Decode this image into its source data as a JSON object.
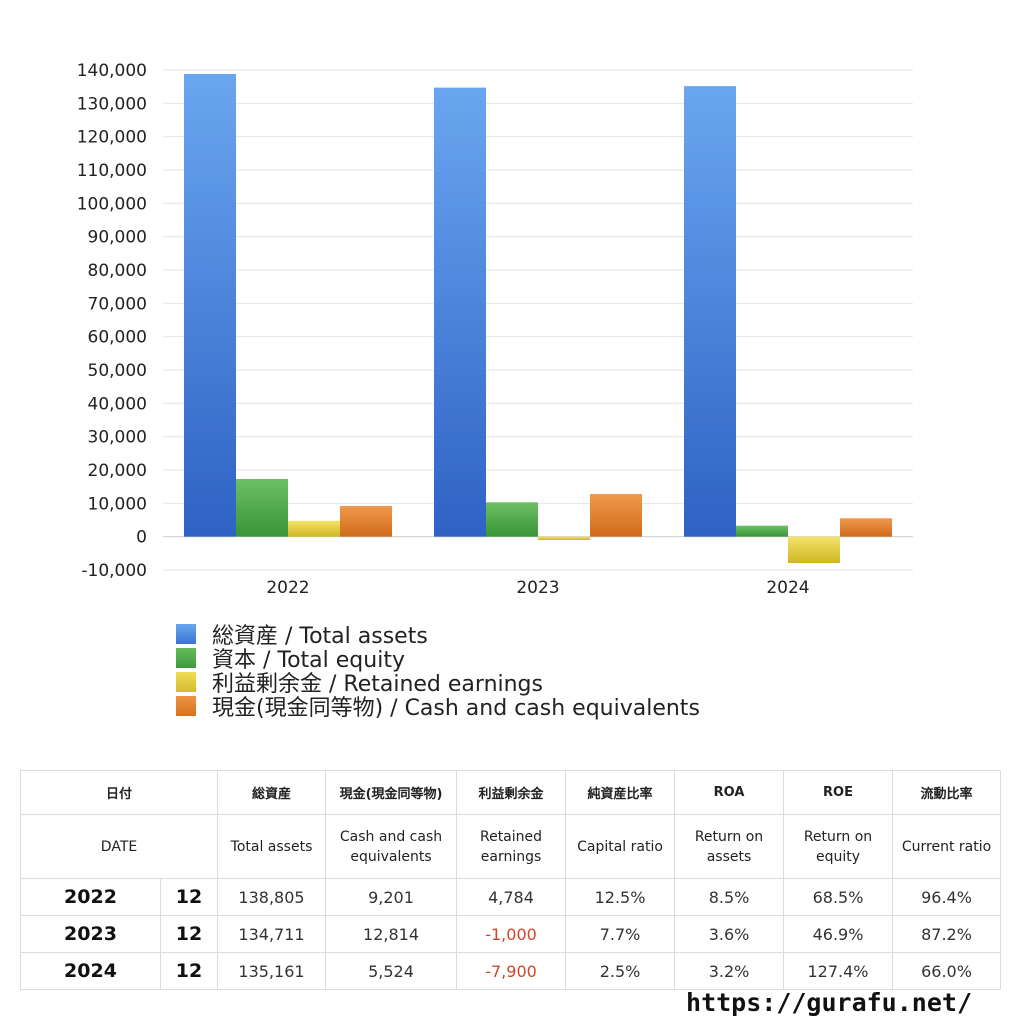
{
  "chart_data": {
    "type": "bar",
    "categories": [
      "2022",
      "2023",
      "2024"
    ],
    "series": [
      {
        "name": "総資産 / Total assets",
        "values": [
          138805,
          134711,
          135161
        ],
        "color": "#4a88e0"
      },
      {
        "name": "資本 / Total equity",
        "values": [
          17300,
          10300,
          3300
        ],
        "color": "#4ea74a"
      },
      {
        "name": "利益剰余金 / Retained earnings",
        "values": [
          4784,
          -1000,
          -7900
        ],
        "color": "#e6cf3e"
      },
      {
        "name": "現金(現金同等物) / Cash and cash equivalents",
        "values": [
          9201,
          12814,
          5524
        ],
        "color": "#e2812e"
      }
    ],
    "ylim": [
      -10000,
      140000
    ],
    "yticks": [
      "140,000",
      "130,000",
      "120,000",
      "110,000",
      "100,000",
      "90,000",
      "80,000",
      "70,000",
      "60,000",
      "50,000",
      "40,000",
      "30,000",
      "20,000",
      "10,000",
      "0",
      "-10,000"
    ],
    "grid": true,
    "legend_position": "bottom"
  },
  "table": {
    "header1": [
      "日付",
      "",
      "総資産",
      "現金(現金同等物)",
      "利益剰余金",
      "純資産比率",
      "ROA",
      "ROE",
      "流動比率"
    ],
    "header2": [
      "DATE",
      "",
      "Total assets",
      "Cash and cash equivalents",
      "Retained earnings",
      "Capital ratio",
      "Return on assets",
      "Return on equity",
      "Current ratio"
    ],
    "rows": [
      {
        "year": "2022",
        "month": "12",
        "total_assets": "138,805",
        "cash": "9,201",
        "retained": "4,784",
        "capital_ratio": "12.5%",
        "roa": "8.5%",
        "roe": "68.5%",
        "current_ratio": "96.4%"
      },
      {
        "year": "2023",
        "month": "12",
        "total_assets": "134,711",
        "cash": "12,814",
        "retained": "-1,000",
        "capital_ratio": "7.7%",
        "roa": "3.6%",
        "roe": "46.9%",
        "current_ratio": "87.2%"
      },
      {
        "year": "2024",
        "month": "12",
        "total_assets": "135,161",
        "cash": "5,524",
        "retained": "-7,900",
        "capital_ratio": "2.5%",
        "roa": "3.2%",
        "roe": "127.4%",
        "current_ratio": "66.0%"
      }
    ]
  },
  "footer": {
    "url": "https://gurafu.net/"
  }
}
